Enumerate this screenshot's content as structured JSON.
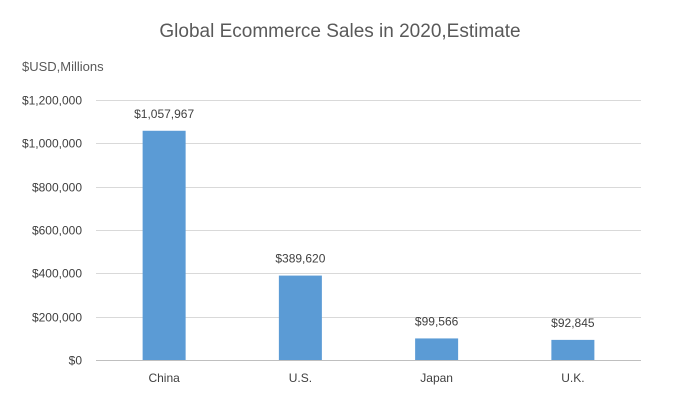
{
  "chart_data": {
    "type": "bar",
    "title": "Global Ecommerce Sales in 2020,Estimate",
    "unit_label": "$USD,Millions",
    "xlabel": "",
    "ylabel": "",
    "categories": [
      "China",
      "U.S.",
      "Japan",
      "U.K."
    ],
    "values": [
      1057967,
      389620,
      99566,
      92845
    ],
    "data_labels": [
      "$1,057,967",
      "$389,620",
      "$99,566",
      "$92,845"
    ],
    "ylim": [
      0,
      1200000
    ],
    "yticks": [
      0,
      200000,
      400000,
      600000,
      800000,
      1000000,
      1200000
    ],
    "ytick_labels": [
      "$0",
      "$200,000",
      "$400,000",
      "$600,000",
      "$800,000",
      "$1,000,000",
      "$1,200,000"
    ],
    "grid": true,
    "legend": "none",
    "bar_color": "#5b9bd5",
    "grid_color": "#d9d9d9",
    "text_color": "#404040"
  }
}
